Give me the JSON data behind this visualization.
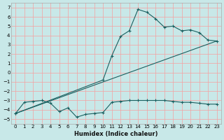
{
  "xlabel": "Humidex (Indice chaleur)",
  "ylabel": "",
  "background_color": "#c8e8e8",
  "grid_color": "#f5a0a0",
  "line_color": "#1a6060",
  "xlim": [
    -0.5,
    23.5
  ],
  "ylim": [
    -5.5,
    7.5
  ],
  "xticks": [
    0,
    1,
    2,
    3,
    4,
    5,
    6,
    7,
    8,
    9,
    10,
    11,
    12,
    13,
    14,
    15,
    16,
    17,
    18,
    19,
    20,
    21,
    22,
    23
  ],
  "yticks": [
    -5,
    -4,
    -3,
    -2,
    -1,
    0,
    1,
    2,
    3,
    4,
    5,
    6,
    7
  ],
  "line1_x": [
    0,
    1,
    2,
    3,
    4,
    5,
    6,
    7,
    8,
    9,
    10,
    11,
    12,
    13,
    14,
    15,
    16,
    17,
    18,
    19,
    20,
    21,
    22,
    23
  ],
  "line1_y": [
    -4.4,
    -3.2,
    -3.1,
    -3.0,
    -3.3,
    -4.2,
    -3.8,
    -4.8,
    -4.5,
    -4.4,
    -4.3,
    -3.2,
    -3.1,
    -3.0,
    -3.0,
    -3.0,
    -3.0,
    -3.0,
    -3.1,
    -3.2,
    -3.2,
    -3.3,
    -3.4,
    -3.4
  ],
  "line2_x": [
    0,
    10,
    11,
    12,
    13,
    14,
    15,
    16,
    17,
    18,
    19,
    20,
    21,
    22,
    23
  ],
  "line2_y": [
    -4.4,
    -0.8,
    1.8,
    3.9,
    4.5,
    6.8,
    6.5,
    5.8,
    4.9,
    5.0,
    4.5,
    4.6,
    4.3,
    3.5,
    3.4
  ],
  "line3_x": [
    0,
    23
  ],
  "line3_y": [
    -4.4,
    3.4
  ]
}
